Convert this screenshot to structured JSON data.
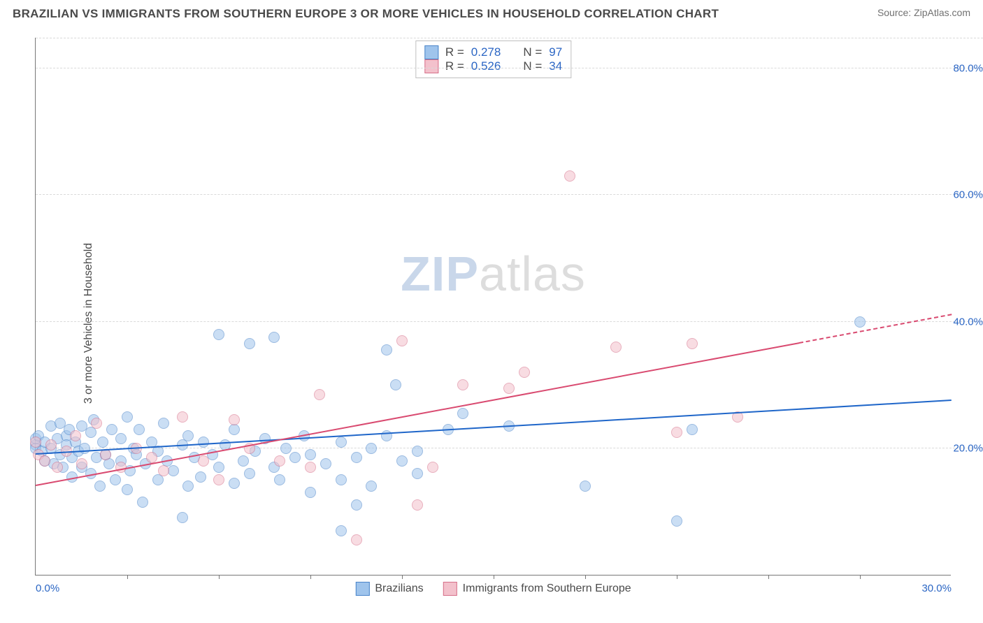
{
  "title": "BRAZILIAN VS IMMIGRANTS FROM SOUTHERN EUROPE 3 OR MORE VEHICLES IN HOUSEHOLD CORRELATION CHART",
  "source": "Source: ZipAtlas.com",
  "y_axis_label": "3 or more Vehicles in Household",
  "watermark_a": "ZIP",
  "watermark_b": "atlas",
  "chart": {
    "type": "scatter",
    "xlim": [
      0,
      30
    ],
    "ylim": [
      0,
      85
    ],
    "x_ticks": [
      0,
      30
    ],
    "x_tick_labels": [
      "0.0%",
      "30.0%"
    ],
    "x_minor_ticks": [
      3,
      6,
      9,
      12,
      15,
      18,
      21,
      24,
      27
    ],
    "y_gridlines": [
      20,
      40,
      60,
      80
    ],
    "y_tick_labels": [
      "20.0%",
      "40.0%",
      "60.0%",
      "80.0%"
    ],
    "grid_color": "#d9d9d9",
    "axis_color": "#777777",
    "background_color": "#ffffff",
    "tick_label_color": "#2b66c4",
    "marker_radius": 8,
    "marker_opacity": 0.55
  },
  "series": [
    {
      "name": "Brazilians",
      "label": "Brazilians",
      "color_fill": "#9fc4ec",
      "color_stroke": "#4a84c9",
      "trend_color": "#1f66c9",
      "R": "0.278",
      "N": "97",
      "trend": {
        "x1": 0,
        "y1": 19.0,
        "x2": 30,
        "y2": 27.5,
        "dash_from_x": null
      },
      "points": [
        [
          0.0,
          20.5
        ],
        [
          0.0,
          20.0
        ],
        [
          0.0,
          21.5
        ],
        [
          0.1,
          22.0
        ],
        [
          0.2,
          19.5
        ],
        [
          0.3,
          21.0
        ],
        [
          0.3,
          18.0
        ],
        [
          0.5,
          23.5
        ],
        [
          0.5,
          20.0
        ],
        [
          0.6,
          17.5
        ],
        [
          0.7,
          21.5
        ],
        [
          0.8,
          24.0
        ],
        [
          0.8,
          19.0
        ],
        [
          0.9,
          17.0
        ],
        [
          1.0,
          22.0
        ],
        [
          1.0,
          20.5
        ],
        [
          1.1,
          23.0
        ],
        [
          1.2,
          18.5
        ],
        [
          1.2,
          15.5
        ],
        [
          1.3,
          21.0
        ],
        [
          1.4,
          19.5
        ],
        [
          1.5,
          23.5
        ],
        [
          1.5,
          17.0
        ],
        [
          1.6,
          20.0
        ],
        [
          1.8,
          22.5
        ],
        [
          1.8,
          16.0
        ],
        [
          1.9,
          24.5
        ],
        [
          2.0,
          18.5
        ],
        [
          2.1,
          14.0
        ],
        [
          2.2,
          21.0
        ],
        [
          2.3,
          19.0
        ],
        [
          2.4,
          17.5
        ],
        [
          2.5,
          23.0
        ],
        [
          2.6,
          15.0
        ],
        [
          2.8,
          21.5
        ],
        [
          2.8,
          18.0
        ],
        [
          3.0,
          25.0
        ],
        [
          3.0,
          13.5
        ],
        [
          3.1,
          16.5
        ],
        [
          3.2,
          20.0
        ],
        [
          3.3,
          19.0
        ],
        [
          3.4,
          23.0
        ],
        [
          3.5,
          11.5
        ],
        [
          3.6,
          17.5
        ],
        [
          3.8,
          21.0
        ],
        [
          4.0,
          19.5
        ],
        [
          4.0,
          15.0
        ],
        [
          4.2,
          24.0
        ],
        [
          4.3,
          18.0
        ],
        [
          4.5,
          16.5
        ],
        [
          4.8,
          20.5
        ],
        [
          4.8,
          9.0
        ],
        [
          5.0,
          22.0
        ],
        [
          5.0,
          14.0
        ],
        [
          5.2,
          18.5
        ],
        [
          5.4,
          15.5
        ],
        [
          5.5,
          21.0
        ],
        [
          5.8,
          19.0
        ],
        [
          6.0,
          17.0
        ],
        [
          6.0,
          38.0
        ],
        [
          6.2,
          20.5
        ],
        [
          6.5,
          14.5
        ],
        [
          6.5,
          23.0
        ],
        [
          6.8,
          18.0
        ],
        [
          7.0,
          16.0
        ],
        [
          7.0,
          36.5
        ],
        [
          7.2,
          19.5
        ],
        [
          7.5,
          21.5
        ],
        [
          7.8,
          17.0
        ],
        [
          7.8,
          37.5
        ],
        [
          8.0,
          15.0
        ],
        [
          8.2,
          20.0
        ],
        [
          8.5,
          18.5
        ],
        [
          8.8,
          22.0
        ],
        [
          9.0,
          13.0
        ],
        [
          9.0,
          19.0
        ],
        [
          9.5,
          17.5
        ],
        [
          10.0,
          21.0
        ],
        [
          10.0,
          15.0
        ],
        [
          10.0,
          7.0
        ],
        [
          10.5,
          18.5
        ],
        [
          10.5,
          11.0
        ],
        [
          11.0,
          20.0
        ],
        [
          11.0,
          14.0
        ],
        [
          11.5,
          35.5
        ],
        [
          11.5,
          22.0
        ],
        [
          11.8,
          30.0
        ],
        [
          12.0,
          18.0
        ],
        [
          12.5,
          19.5
        ],
        [
          12.5,
          16.0
        ],
        [
          13.5,
          23.0
        ],
        [
          14.0,
          25.5
        ],
        [
          15.5,
          23.5
        ],
        [
          18.0,
          14.0
        ],
        [
          21.0,
          8.5
        ],
        [
          21.5,
          23.0
        ],
        [
          27.0,
          40.0
        ]
      ]
    },
    {
      "name": "Immigrants from Southern Europe",
      "label": "Immigrants from Southern Europe",
      "color_fill": "#f3c1cc",
      "color_stroke": "#d66f89",
      "trend_color": "#d94a70",
      "R": "0.526",
      "N": "34",
      "trend": {
        "x1": 0,
        "y1": 14.0,
        "x2": 30,
        "y2": 41.0,
        "dash_from_x": 25.0
      },
      "points": [
        [
          0.0,
          21.0
        ],
        [
          0.1,
          19.0
        ],
        [
          0.3,
          18.0
        ],
        [
          0.5,
          20.5
        ],
        [
          0.7,
          17.0
        ],
        [
          1.0,
          19.5
        ],
        [
          1.3,
          22.0
        ],
        [
          1.5,
          17.5
        ],
        [
          2.0,
          24.0
        ],
        [
          2.3,
          19.0
        ],
        [
          2.8,
          17.0
        ],
        [
          3.3,
          20.0
        ],
        [
          3.8,
          18.5
        ],
        [
          4.2,
          16.5
        ],
        [
          4.8,
          25.0
        ],
        [
          5.5,
          18.0
        ],
        [
          6.0,
          15.0
        ],
        [
          6.5,
          24.5
        ],
        [
          7.0,
          20.0
        ],
        [
          8.0,
          18.0
        ],
        [
          9.0,
          17.0
        ],
        [
          9.3,
          28.5
        ],
        [
          10.5,
          5.5
        ],
        [
          12.0,
          37.0
        ],
        [
          12.5,
          11.0
        ],
        [
          13.0,
          17.0
        ],
        [
          14.0,
          30.0
        ],
        [
          15.5,
          29.5
        ],
        [
          16.0,
          32.0
        ],
        [
          17.5,
          63.0
        ],
        [
          19.0,
          36.0
        ],
        [
          21.0,
          22.5
        ],
        [
          21.5,
          36.5
        ],
        [
          23.0,
          25.0
        ]
      ]
    }
  ],
  "legend_top": {
    "r_label": "R =",
    "n_label": "N ="
  }
}
